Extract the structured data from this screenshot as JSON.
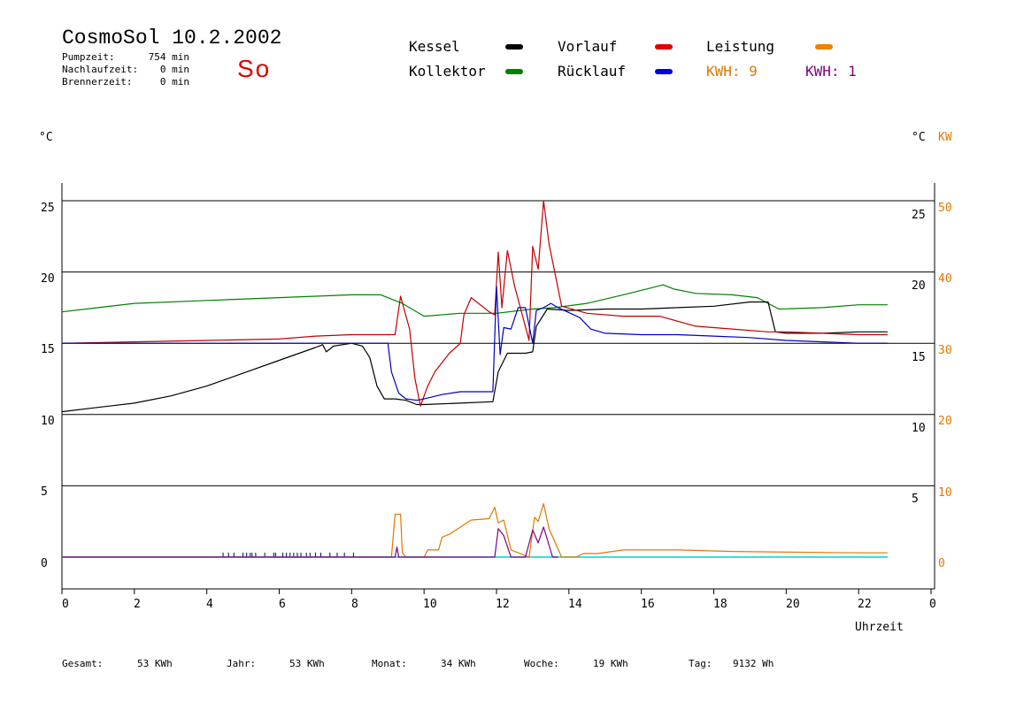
{
  "header": {
    "title": "CosmoSol 10.2.2002",
    "day": "So",
    "info": [
      {
        "label": "Pumpzeit:",
        "value": "754 min"
      },
      {
        "label": "Nachlaufzeit:",
        "value": "0 min"
      },
      {
        "label": "Brennerzeit:",
        "value": "0 min"
      }
    ]
  },
  "legend": {
    "items": [
      {
        "label": "Kessel",
        "color": "#000000"
      },
      {
        "label": "Vorlauf",
        "color": "#e00000"
      },
      {
        "label": "Leistung",
        "color": "#f08000"
      },
      {
        "label": "Kollektor",
        "color": "#008000"
      },
      {
        "label": "Rücklauf",
        "color": "#0000e0"
      }
    ],
    "kwh_orange": "KWH: 9",
    "kwh_purple": "KWH: 1",
    "orange_color": "#e07800",
    "purple_color": "#800080"
  },
  "axes": {
    "left_unit": "°C",
    "right_unit_c": "°C",
    "right_unit_kw": "KW",
    "x_label": "Uhrzeit",
    "left_ticks": [
      "25",
      "20",
      "15",
      "10",
      "5",
      "0"
    ],
    "right_c_ticks": [
      "25",
      "20",
      "15",
      "10",
      "5"
    ],
    "right_kw_ticks": [
      "50",
      "40",
      "30",
      "20",
      "10",
      "0"
    ],
    "x_ticks": [
      "0",
      "2",
      "4",
      "6",
      "8",
      "10",
      "12",
      "14",
      "16",
      "18",
      "20",
      "22",
      "0"
    ]
  },
  "footer": {
    "items": [
      {
        "label": "Gesamt:",
        "value": "53 KWh"
      },
      {
        "label": "Jahr:",
        "value": "53 KWh"
      },
      {
        "label": "Monat:",
        "value": "34 KWh"
      },
      {
        "label": "Woche:",
        "value": "19 KWh"
      },
      {
        "label": "Tag:",
        "value": "9132 Wh"
      }
    ]
  },
  "chart_data": {
    "type": "line",
    "xlabel": "Uhrzeit",
    "ylabel": "°C",
    "xlim": [
      0,
      24
    ],
    "ylim": [
      -2.2,
      27
    ],
    "y2label": "KW",
    "y2lim": [
      -4.4,
      54
    ],
    "grid_y": [
      5,
      10,
      15,
      20,
      25
    ],
    "series": [
      {
        "name": "Kollektor",
        "color": "#008000",
        "x": [
          0,
          1,
          2,
          4,
          6,
          8,
          8.8,
          9.4,
          10,
          11,
          12,
          13,
          13.6,
          14.5,
          15.5,
          16.3,
          16.6,
          16.9,
          17.5,
          18.5,
          19.2,
          19.8,
          21,
          22,
          22.8
        ],
        "y": [
          17.2,
          17.5,
          17.8,
          18.0,
          18.2,
          18.4,
          18.4,
          17.8,
          16.9,
          17.1,
          17.1,
          17.4,
          17.5,
          17.8,
          18.4,
          18.9,
          19.1,
          18.8,
          18.5,
          18.4,
          18.2,
          17.4,
          17.5,
          17.7,
          17.7
        ]
      },
      {
        "name": "Kessel",
        "color": "#000000",
        "x": [
          0,
          1,
          2,
          3,
          4,
          5,
          6,
          7,
          7.2,
          7.3,
          7.5,
          8,
          8.3,
          8.5,
          8.7,
          8.9,
          9.2,
          9.5,
          9.8,
          10,
          11,
          11.9,
          12.05,
          12.3,
          12.8,
          13.0,
          13.1,
          13.4,
          14,
          15,
          16,
          17,
          18,
          19,
          19.5,
          19.7,
          20,
          21,
          22,
          22.8
        ],
        "y": [
          10.2,
          10.5,
          10.8,
          11.3,
          12.0,
          12.9,
          13.8,
          14.7,
          14.9,
          14.4,
          14.8,
          15.0,
          14.8,
          14.0,
          12.0,
          11.1,
          11.1,
          11.0,
          10.7,
          10.7,
          10.8,
          10.9,
          13.0,
          14.3,
          14.3,
          14.4,
          16.2,
          17.4,
          17.3,
          17.4,
          17.4,
          17.5,
          17.6,
          17.9,
          17.9,
          15.8,
          15.7,
          15.7,
          15.8,
          15.8
        ]
      },
      {
        "name": "Vorlauf",
        "color": "#c00000",
        "x": [
          0,
          2,
          4,
          6,
          7,
          8,
          9.2,
          9.35,
          9.6,
          9.75,
          9.9,
          10.1,
          10.3,
          10.7,
          11.0,
          11.1,
          11.3,
          11.8,
          11.95,
          12.05,
          12.15,
          12.3,
          12.5,
          12.9,
          13.0,
          13.15,
          13.3,
          13.45,
          13.8,
          14.5,
          15.5,
          16.5,
          17.5,
          18.5,
          19.5,
          20,
          21,
          22,
          22.8
        ],
        "y": [
          15.0,
          15.1,
          15.2,
          15.3,
          15.5,
          15.6,
          15.6,
          18.3,
          16.0,
          12.5,
          10.6,
          12.0,
          13.0,
          14.3,
          15.0,
          17.0,
          18.2,
          17.2,
          17.0,
          21.4,
          17.5,
          21.5,
          19.0,
          15.2,
          21.8,
          20.2,
          25.0,
          22.0,
          17.6,
          17.1,
          16.9,
          16.9,
          16.2,
          16.0,
          15.8,
          15.8,
          15.7,
          15.6,
          15.6
        ]
      },
      {
        "name": "Rücklauf",
        "color": "#0000c0",
        "x": [
          0,
          2,
          4,
          6,
          7,
          8,
          9.0,
          9.1,
          9.3,
          9.5,
          9.8,
          10,
          10.5,
          11,
          11.5,
          11.9,
          12.0,
          12.1,
          12.2,
          12.4,
          12.6,
          12.8,
          13.0,
          13.1,
          13.3,
          13.5,
          13.7,
          14.3,
          14.6,
          15,
          16,
          17,
          18,
          19,
          20,
          21,
          22,
          22.8
        ],
        "y": [
          15.0,
          15.0,
          15.0,
          15.0,
          15.0,
          15.0,
          15.0,
          13.0,
          11.5,
          11.1,
          11.0,
          11.1,
          11.4,
          11.6,
          11.6,
          11.6,
          19.0,
          14.2,
          16.1,
          16.0,
          17.5,
          17.5,
          15.0,
          17.3,
          17.5,
          17.8,
          17.5,
          16.8,
          16.0,
          15.7,
          15.6,
          15.6,
          15.5,
          15.4,
          15.2,
          15.1,
          15.0,
          15.0
        ]
      },
      {
        "name": "Leistung",
        "color": "#e07800",
        "axis": "right",
        "x": [
          0,
          9.1,
          9.2,
          9.35,
          9.4,
          9.5,
          10.0,
          10.1,
          10.4,
          10.5,
          10.7,
          11.3,
          11.8,
          11.95,
          12.05,
          12.2,
          12.4,
          12.9,
          13.05,
          13.15,
          13.3,
          13.45,
          13.8,
          14.2,
          14.4,
          14.8,
          15.5,
          17,
          18.5,
          20,
          22,
          22.8
        ],
        "y": [
          0,
          0,
          6.0,
          6.0,
          0.6,
          0,
          0,
          1.0,
          1.0,
          2.8,
          3.2,
          5.2,
          5.4,
          7.0,
          4.8,
          5.2,
          1.0,
          0,
          5.6,
          5.0,
          7.5,
          4.0,
          0,
          0,
          0.5,
          0.5,
          1.0,
          1.0,
          0.8,
          0.7,
          0.6,
          0.6
        ]
      },
      {
        "name": "KWH",
        "color": "#800080",
        "axis": "right",
        "x": [
          0,
          9.2,
          9.25,
          9.3,
          11.95,
          12.05,
          12.2,
          12.4,
          12.8,
          13.0,
          13.15,
          13.3,
          13.55,
          13.7
        ],
        "y": [
          0,
          0,
          1.4,
          0,
          0,
          4.0,
          3.0,
          0,
          0,
          3.8,
          2.0,
          4.2,
          0,
          0
        ]
      }
    ],
    "spikes": {
      "color": "#000080",
      "x": [
        4.45,
        4.6,
        4.75,
        5.0,
        5.1,
        5.2,
        5.25,
        5.35,
        5.6,
        5.85,
        5.9,
        6.1,
        6.2,
        6.3,
        6.4,
        6.5,
        6.6,
        6.75,
        6.85,
        7.0,
        7.15,
        7.4,
        7.6,
        7.8,
        8.05
      ]
    }
  }
}
